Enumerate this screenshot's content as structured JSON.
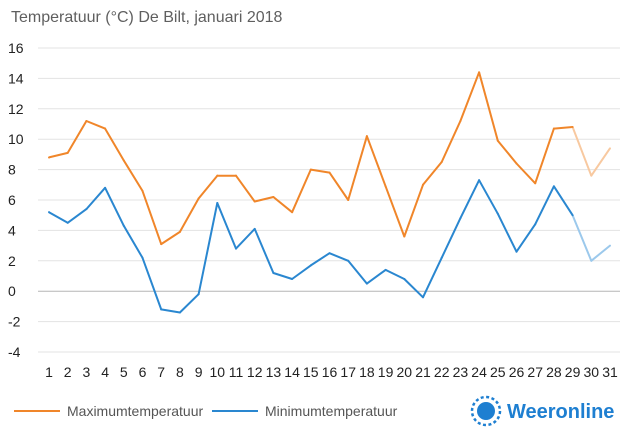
{
  "chart_data": {
    "type": "line",
    "title": "Temperatuur (°C)  De Bilt, januari 2018",
    "xlabel": "",
    "ylabel": "",
    "categories": [
      "1",
      "2",
      "3",
      "4",
      "5",
      "6",
      "7",
      "8",
      "9",
      "10",
      "11",
      "12",
      "13",
      "14",
      "15",
      "16",
      "17",
      "18",
      "19",
      "20",
      "21",
      "22",
      "23",
      "24",
      "25",
      "26",
      "27",
      "28",
      "29",
      "30",
      "31"
    ],
    "ylim": [
      -4,
      16
    ],
    "yticks": [
      "-4",
      "-2",
      "0",
      "2",
      "4",
      "6",
      "8",
      "10",
      "12",
      "14",
      "16"
    ],
    "grid": true,
    "legend_position": "bottom-left",
    "forecast_from_day": 29,
    "series": [
      {
        "name": "Maximumtemperatuur",
        "color": "#f0862a",
        "forecast_color": "#f8c9a0",
        "values": [
          8.8,
          9.1,
          11.2,
          10.7,
          8.6,
          6.6,
          3.1,
          3.9,
          6.1,
          7.6,
          7.6,
          5.9,
          6.2,
          5.2,
          8.0,
          7.8,
          6.0,
          10.2,
          6.9,
          3.6,
          7.0,
          8.5,
          11.2,
          14.4,
          9.9,
          8.4,
          7.1,
          10.7,
          10.8,
          7.6,
          9.4
        ]
      },
      {
        "name": "Minimumtemperatuur",
        "color": "#2a87d0",
        "forecast_color": "#9cc9ec",
        "values": [
          5.2,
          4.5,
          5.4,
          6.8,
          4.3,
          2.2,
          -1.2,
          -1.4,
          -0.2,
          5.8,
          2.8,
          4.1,
          1.2,
          0.8,
          1.7,
          2.5,
          2.0,
          0.5,
          1.4,
          0.8,
          -0.4,
          2.2,
          4.8,
          7.3,
          5.1,
          2.6,
          4.4,
          6.9,
          5.0,
          2.0,
          3.0
        ]
      }
    ]
  },
  "brand": {
    "name": "Weeronline",
    "logo_icon": "sun-logo-icon",
    "logo_color": "#1e7fd1"
  }
}
